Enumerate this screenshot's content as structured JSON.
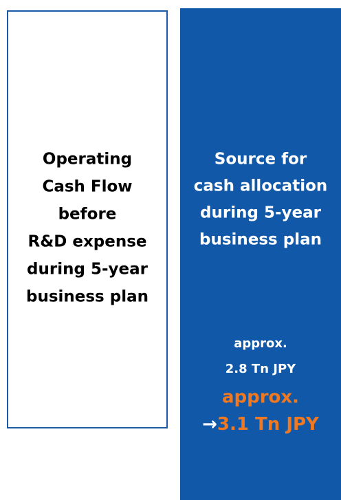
{
  "left_box": {
    "lines": [
      "Operating",
      "Cash Flow",
      "before",
      "R&D expense",
      "during 5-year",
      "business plan"
    ]
  },
  "right_box": {
    "lines": [
      "Source for",
      "cash allocation",
      "during 5-year",
      "business plan"
    ],
    "previous_estimate": [
      "approx.",
      "2.8 Tn JPY"
    ],
    "revised_estimate": {
      "prefix": "approx.",
      "arrow": "→",
      "value": "3.1 Tn JPY"
    }
  }
}
